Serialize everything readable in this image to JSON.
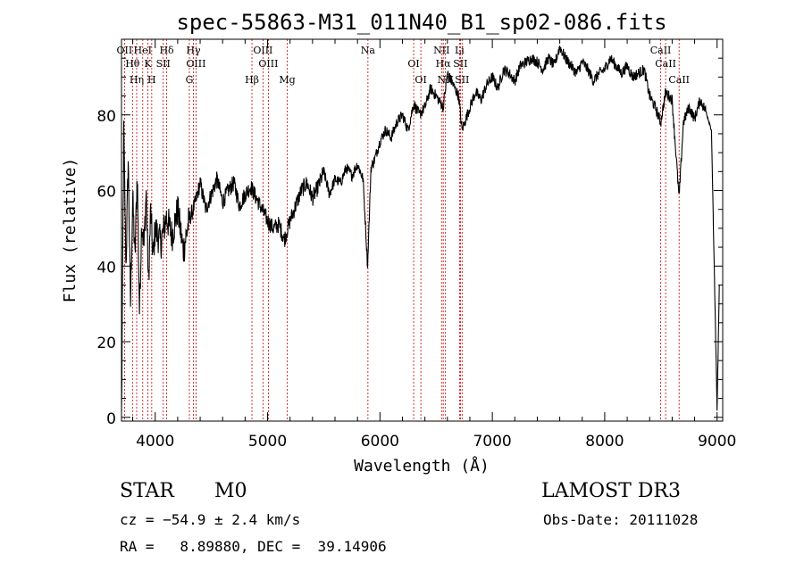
{
  "chart_data": {
    "type": "line",
    "title": "spec-55863-M31_011N40_B1_sp02-086.fits",
    "xlabel": "Wavelength (Å)",
    "ylabel": "Flux (relative)",
    "xlim": [
      3700,
      9050
    ],
    "ylim": [
      -1,
      100
    ],
    "x_ticks": [
      4000,
      5000,
      6000,
      7000,
      8000,
      9000
    ],
    "y_ticks": [
      0,
      20,
      40,
      60,
      80
    ],
    "x_tick_labels": [
      "4000",
      "5000",
      "6000",
      "7000",
      "8000",
      "9000"
    ],
    "y_tick_labels": [
      "0",
      "20",
      "40",
      "60",
      "80"
    ],
    "series": [
      {
        "name": "flux",
        "x": [
          3700,
          3720,
          3740,
          3760,
          3780,
          3800,
          3820,
          3840,
          3860,
          3880,
          3900,
          3920,
          3940,
          3960,
          3980,
          4000,
          4050,
          4100,
          4150,
          4200,
          4250,
          4300,
          4350,
          4400,
          4450,
          4500,
          4550,
          4600,
          4650,
          4700,
          4750,
          4800,
          4850,
          4900,
          4950,
          5000,
          5050,
          5100,
          5150,
          5200,
          5250,
          5300,
          5350,
          5400,
          5450,
          5500,
          5550,
          5600,
          5650,
          5700,
          5750,
          5800,
          5850,
          5890,
          5920,
          5950,
          6000,
          6050,
          6100,
          6150,
          6200,
          6250,
          6300,
          6350,
          6400,
          6450,
          6500,
          6563,
          6600,
          6650,
          6700,
          6730,
          6800,
          6850,
          6900,
          6950,
          7000,
          7050,
          7100,
          7150,
          7200,
          7250,
          7300,
          7350,
          7400,
          7450,
          7500,
          7550,
          7600,
          7650,
          7700,
          7750,
          7800,
          7850,
          7900,
          7950,
          8000,
          8050,
          8100,
          8150,
          8200,
          8250,
          8300,
          8350,
          8400,
          8450,
          8498,
          8542,
          8600,
          8662,
          8700,
          8750,
          8800,
          8850,
          8900,
          8950,
          9000,
          9020
        ],
        "y": [
          0,
          75,
          40,
          68,
          30,
          58,
          42,
          65,
          28,
          52,
          45,
          60,
          35,
          55,
          42,
          50,
          46,
          53,
          48,
          55,
          44,
          52,
          56,
          62,
          55,
          59,
          63,
          57,
          60,
          62,
          56,
          59,
          61,
          58,
          55,
          52,
          50,
          51,
          47,
          52,
          56,
          60,
          62,
          58,
          61,
          65,
          59,
          63,
          62,
          66,
          64,
          67,
          63,
          40,
          66,
          68,
          73,
          76,
          74,
          78,
          80,
          76,
          83,
          80,
          82,
          87,
          85,
          82,
          91,
          88,
          85,
          76,
          82,
          86,
          84,
          88,
          90,
          87,
          92,
          91,
          89,
          93,
          94,
          95,
          94,
          92,
          95,
          93,
          98,
          95,
          93,
          91,
          94,
          92,
          89,
          91,
          92,
          95,
          93,
          91,
          93,
          90,
          91,
          92,
          85,
          82,
          78,
          86,
          84,
          58,
          78,
          82,
          79,
          84,
          81,
          76,
          2,
          35
        ]
      }
    ],
    "lines": [
      {
        "name": "OII",
        "x": 3727
      },
      {
        "name": "Hθ",
        "x": 3798
      },
      {
        "name": "Hη",
        "x": 3835
      },
      {
        "name": "HeI",
        "x": 3889
      },
      {
        "name": "K",
        "x": 3934
      },
      {
        "name": "H",
        "x": 3969
      },
      {
        "name": "Hδ",
        "x": 4102
      },
      {
        "name": "SII",
        "x": 4072
      },
      {
        "name": "G",
        "x": 4304
      },
      {
        "name": "Hγ",
        "x": 4340
      },
      {
        "name": "OIII",
        "x": 4363
      },
      {
        "name": "Hβ",
        "x": 4861
      },
      {
        "name": "OIII",
        "x": 4959
      },
      {
        "name": "OIII",
        "x": 5007
      },
      {
        "name": "Mg",
        "x": 5175
      },
      {
        "name": "Na",
        "x": 5893
      },
      {
        "name": "OI",
        "x": 6300
      },
      {
        "name": "OI",
        "x": 6364
      },
      {
        "name": "NII",
        "x": 6548
      },
      {
        "name": "Hα",
        "x": 6563
      },
      {
        "name": "NII",
        "x": 6583
      },
      {
        "name": "Li",
        "x": 6708
      },
      {
        "name": "SII",
        "x": 6716
      },
      {
        "name": "SII",
        "x": 6731
      },
      {
        "name": "CaII",
        "x": 8498
      },
      {
        "name": "CaII",
        "x": 8542
      },
      {
        "name": "CaII",
        "x": 8662
      }
    ]
  },
  "info": {
    "object_class": "STAR",
    "subclass": "M0",
    "survey": "LAMOST DR3",
    "cz": "cz = −54.9 ± 2.4 km/s",
    "obs_date": "Obs-Date: 20111028",
    "radec": "RA =   8.89880, DEC =  39.14906"
  },
  "colors": {
    "axis": "#000000",
    "marker_lines": "#cc0000"
  }
}
